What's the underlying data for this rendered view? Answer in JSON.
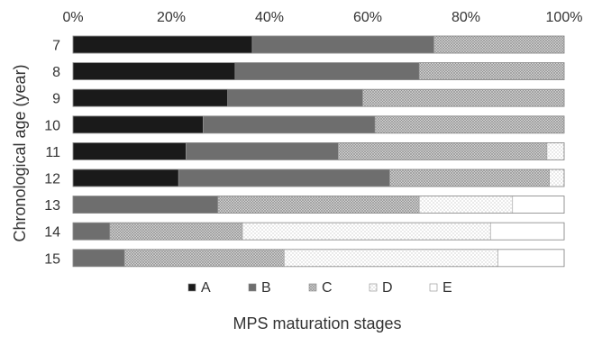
{
  "chart_data": {
    "type": "bar",
    "orientation": "horizontal",
    "stacked": "percent",
    "categories": [
      "7",
      "8",
      "9",
      "10",
      "11",
      "12",
      "13",
      "14",
      "15"
    ],
    "x_ticks": [
      "0%",
      "20%",
      "40%",
      "60%",
      "80%",
      "100%"
    ],
    "xlim": [
      0,
      100
    ],
    "xlabel": "MPS maturation stages",
    "ylabel": "Chronological age (year)",
    "legend_position": "bottom",
    "grid": false,
    "series": [
      {
        "name": "A",
        "color": "#1a1a1a",
        "pattern": "solid-black",
        "values": [
          36.5,
          33.0,
          31.5,
          26.5,
          23.0,
          21.5,
          0,
          0,
          0
        ]
      },
      {
        "name": "B",
        "color": "#6e6e6e",
        "pattern": "solid-gray",
        "values": [
          37.0,
          37.5,
          27.5,
          35.0,
          31.0,
          43.0,
          29.5,
          7.5,
          10.5
        ]
      },
      {
        "name": "C",
        "color": "#bfbfbf",
        "pattern": "crosshatch",
        "values": [
          26.5,
          29.5,
          41.0,
          38.5,
          42.5,
          32.5,
          41.0,
          27.0,
          32.5
        ]
      },
      {
        "name": "D",
        "color": "#e6e6e6",
        "pattern": "dots",
        "values": [
          0,
          0,
          0,
          0,
          3.5,
          3.0,
          19.0,
          50.5,
          43.5
        ]
      },
      {
        "name": "E",
        "color": "#ffffff",
        "pattern": "blank",
        "values": [
          0,
          0,
          0,
          0,
          0,
          0,
          10.5,
          15.0,
          13.5
        ]
      }
    ]
  }
}
